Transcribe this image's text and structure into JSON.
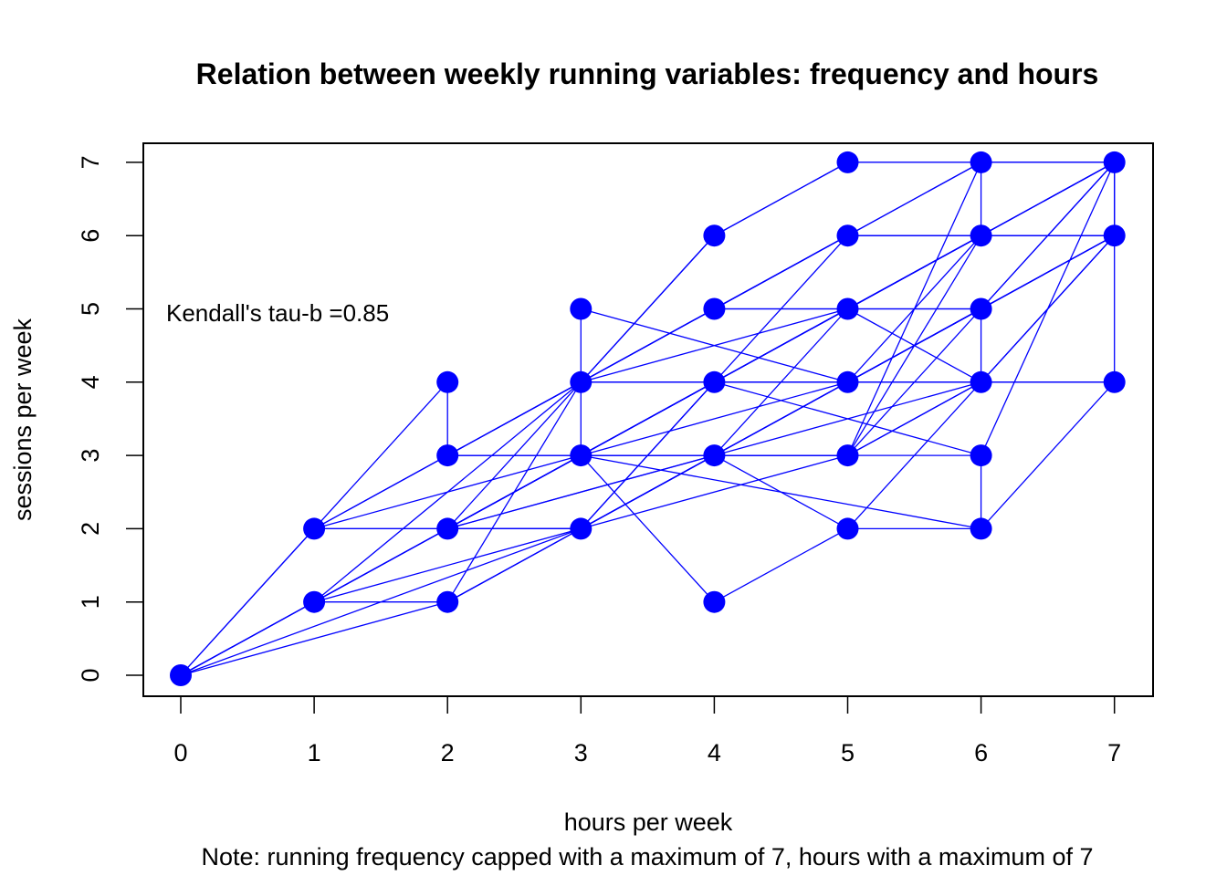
{
  "chart_data": {
    "type": "scatter",
    "title": "Relation between weekly running variables: frequency and hours",
    "xlabel": "hours per week",
    "ylabel": "sessions per week",
    "note": "Note: running frequency capped with a maximum of 7, hours with a maximum of 7",
    "annotation": "Kendall's tau-b =0.85",
    "xlim": [
      0,
      7
    ],
    "ylim": [
      0,
      7
    ],
    "x_ticks": [
      0,
      1,
      2,
      3,
      4,
      5,
      6,
      7
    ],
    "y_ticks": [
      0,
      1,
      2,
      3,
      4,
      5,
      6,
      7
    ],
    "grid": false,
    "color": "#0000ff",
    "points": [
      [
        0,
        0
      ],
      [
        1,
        1
      ],
      [
        1,
        2
      ],
      [
        2,
        1
      ],
      [
        2,
        2
      ],
      [
        2,
        3
      ],
      [
        2,
        4
      ],
      [
        3,
        2
      ],
      [
        3,
        3
      ],
      [
        3,
        4
      ],
      [
        3,
        5
      ],
      [
        4,
        1
      ],
      [
        4,
        3
      ],
      [
        4,
        4
      ],
      [
        4,
        5
      ],
      [
        4,
        6
      ],
      [
        5,
        2
      ],
      [
        5,
        3
      ],
      [
        5,
        4
      ],
      [
        5,
        5
      ],
      [
        5,
        6
      ],
      [
        5,
        7
      ],
      [
        6,
        2
      ],
      [
        6,
        3
      ],
      [
        6,
        4
      ],
      [
        6,
        5
      ],
      [
        6,
        6
      ],
      [
        6,
        7
      ],
      [
        7,
        4
      ],
      [
        7,
        6
      ],
      [
        7,
        7
      ]
    ],
    "line_sequence": [
      [
        0,
        0
      ],
      [
        1,
        2
      ],
      [
        2,
        4
      ],
      [
        2,
        3
      ],
      [
        3,
        4
      ],
      [
        4,
        6
      ],
      [
        5,
        7
      ],
      [
        6,
        7
      ],
      [
        7,
        7
      ],
      [
        7,
        6
      ],
      [
        6,
        6
      ],
      [
        5,
        6
      ],
      [
        4,
        5
      ],
      [
        5,
        5
      ],
      [
        6,
        5
      ],
      [
        5,
        4
      ],
      [
        4,
        4
      ],
      [
        3,
        3
      ],
      [
        2,
        2
      ],
      [
        1,
        1
      ],
      [
        0,
        0
      ],
      [
        2,
        1
      ],
      [
        3,
        2
      ],
      [
        4,
        3
      ],
      [
        5,
        3
      ],
      [
        6,
        3
      ],
      [
        6,
        2
      ],
      [
        5,
        2
      ],
      [
        4,
        1
      ],
      [
        3,
        3
      ],
      [
        3,
        5
      ],
      [
        5,
        4
      ],
      [
        6,
        4
      ],
      [
        7,
        4
      ],
      [
        7,
        7
      ],
      [
        6,
        6
      ],
      [
        5,
        5
      ],
      [
        4,
        4
      ],
      [
        3,
        4
      ],
      [
        2,
        3
      ],
      [
        1,
        2
      ],
      [
        0,
        0
      ],
      [
        3,
        2
      ],
      [
        2,
        2
      ],
      [
        3,
        3
      ],
      [
        4,
        3
      ],
      [
        5,
        4
      ],
      [
        6,
        5
      ],
      [
        7,
        6
      ],
      [
        6,
        6
      ],
      [
        5,
        6
      ],
      [
        4,
        5
      ],
      [
        3,
        4
      ],
      [
        4,
        4
      ],
      [
        5,
        5
      ],
      [
        6,
        6
      ],
      [
        7,
        7
      ],
      [
        6,
        7
      ],
      [
        5,
        6
      ],
      [
        4,
        4
      ],
      [
        3,
        3
      ],
      [
        2,
        2
      ],
      [
        3,
        2
      ],
      [
        4,
        3
      ],
      [
        5,
        3
      ],
      [
        6,
        4
      ],
      [
        7,
        6
      ],
      [
        6,
        5
      ],
      [
        5,
        4
      ],
      [
        4,
        4
      ],
      [
        3,
        3
      ],
      [
        2,
        3
      ],
      [
        3,
        4
      ],
      [
        4,
        5
      ],
      [
        5,
        5
      ],
      [
        6,
        6
      ],
      [
        7,
        7
      ],
      [
        6,
        7
      ],
      [
        5,
        7
      ],
      [
        4,
        6
      ],
      [
        3,
        4
      ],
      [
        2,
        2
      ],
      [
        1,
        1
      ],
      [
        2,
        1
      ],
      [
        3,
        2
      ],
      [
        4,
        4
      ],
      [
        5,
        5
      ],
      [
        6,
        5
      ],
      [
        6,
        4
      ],
      [
        5,
        3
      ],
      [
        4,
        3
      ],
      [
        3,
        2
      ],
      [
        2,
        2
      ],
      [
        1,
        2
      ],
      [
        2,
        3
      ],
      [
        3,
        3
      ],
      [
        4,
        4
      ],
      [
        5,
        4
      ],
      [
        6,
        5
      ],
      [
        7,
        6
      ],
      [
        6,
        4
      ],
      [
        5,
        2
      ],
      [
        4,
        3
      ],
      [
        3,
        3
      ],
      [
        2,
        2
      ],
      [
        1,
        1
      ],
      [
        0,
        0
      ],
      [
        3,
        3
      ],
      [
        5,
        5
      ],
      [
        7,
        7
      ],
      [
        5,
        3
      ],
      [
        3,
        2
      ],
      [
        1,
        1
      ],
      [
        3,
        4
      ],
      [
        5,
        6
      ],
      [
        7,
        6
      ],
      [
        5,
        4
      ],
      [
        3,
        3
      ],
      [
        1,
        2
      ],
      [
        3,
        2
      ],
      [
        5,
        4
      ],
      [
        7,
        4
      ],
      [
        6,
        2
      ],
      [
        3,
        3
      ],
      [
        4,
        4
      ],
      [
        6,
        6
      ],
      [
        6,
        7
      ],
      [
        4,
        5
      ],
      [
        2,
        3
      ],
      [
        4,
        3
      ],
      [
        6,
        5
      ],
      [
        7,
        7
      ],
      [
        6,
        3
      ],
      [
        4,
        4
      ],
      [
        2,
        2
      ],
      [
        4,
        3
      ],
      [
        6,
        4
      ],
      [
        5,
        5
      ],
      [
        3,
        4
      ],
      [
        2,
        1
      ],
      [
        4,
        3
      ],
      [
        5,
        3
      ],
      [
        6,
        6
      ],
      [
        4,
        4
      ],
      [
        3,
        2
      ],
      [
        5,
        4
      ],
      [
        6,
        6
      ],
      [
        5,
        5
      ],
      [
        4,
        3
      ],
      [
        2,
        2
      ],
      [
        3,
        3
      ],
      [
        5,
        3
      ],
      [
        6,
        7
      ]
    ]
  }
}
